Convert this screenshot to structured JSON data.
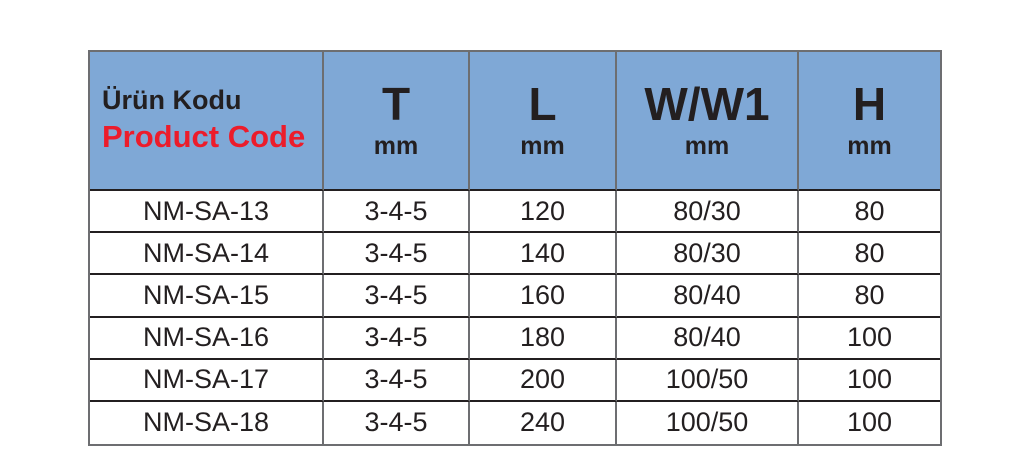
{
  "table": {
    "header": {
      "product_code_tr": "Ürün Kodu",
      "product_code_en": "Product Code",
      "columns": [
        {
          "label": "T",
          "unit": "mm"
        },
        {
          "label": "L",
          "unit": "mm"
        },
        {
          "label": "W/W1",
          "unit": "mm"
        },
        {
          "label": "H",
          "unit": "mm"
        }
      ]
    },
    "rows": [
      [
        "NM-SA-13",
        "3-4-5",
        "120",
        "80/30",
        "80"
      ],
      [
        "NM-SA-14",
        "3-4-5",
        "140",
        "80/30",
        "80"
      ],
      [
        "NM-SA-15",
        "3-4-5",
        "160",
        "80/40",
        "80"
      ],
      [
        "NM-SA-16",
        "3-4-5",
        "180",
        "80/40",
        "100"
      ],
      [
        "NM-SA-17",
        "3-4-5",
        "200",
        "100/50",
        "100"
      ],
      [
        "NM-SA-18",
        "3-4-5",
        "240",
        "100/50",
        "100"
      ]
    ]
  },
  "colors": {
    "header_background": "#7FA8D6",
    "product_code_red": "#EC1C2B",
    "text_black": "#231F20",
    "divider_gray": "#6D6E71"
  }
}
